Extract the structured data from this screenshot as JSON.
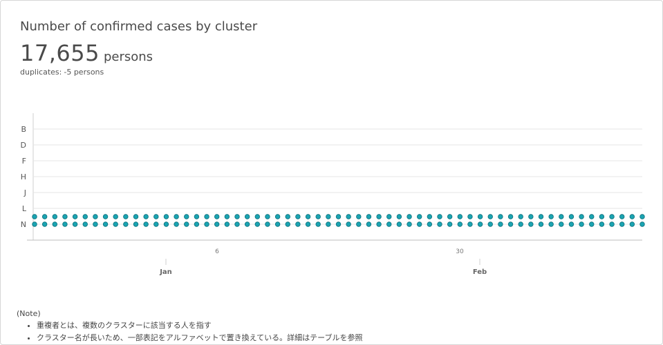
{
  "header": {
    "title": "Number of confirmed cases by cluster",
    "total_value": "17,655",
    "total_unit": "persons",
    "duplicates_label": "duplicates:",
    "duplicates_value": "-5 persons"
  },
  "chart_data": {
    "type": "scatter",
    "y_categories": [
      "B",
      "D",
      "F",
      "H",
      "J",
      "L",
      "N"
    ],
    "x_tick_labels": [
      "6",
      "30"
    ],
    "x_month_labels": [
      "Jan",
      "Feb"
    ],
    "series": [
      {
        "category": "N",
        "points": 61,
        "rows": 2
      }
    ],
    "grid": true,
    "colors": {
      "point_fill": "#1ba4b2",
      "point_stroke": "#0b6f7a"
    }
  },
  "notes": {
    "heading": "(Note)",
    "items": [
      "重複者とは、複数のクラスターに該当する人を指す",
      "クラスター名が長いため、一部表記をアルファベットで置き換えている。詳細はテーブルを参照"
    ]
  }
}
